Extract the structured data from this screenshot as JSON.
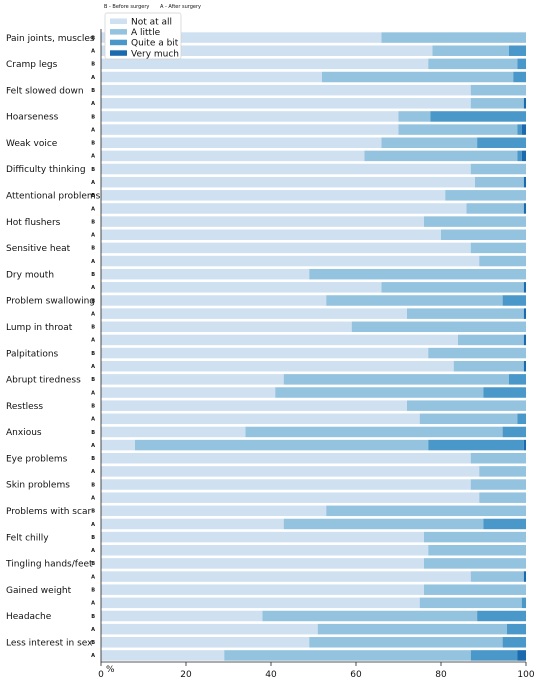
{
  "chart_data": {
    "type": "bar",
    "orientation": "horizontal",
    "stacked": true,
    "group_note": {
      "before": "B - Before surgery",
      "after": "A - After surgery"
    },
    "group_codes": [
      "B",
      "A"
    ],
    "categories": [
      "Pain joints, muscles",
      "Cramp legs",
      "Felt slowed down",
      "Hoarseness",
      "Weak voice",
      "Difficulty thinking",
      "Attentional problems",
      "Hot flushers",
      "Sensitive heat",
      "Dry mouth",
      "Problem swallowing",
      "Lump in throat",
      "Palpitations",
      "Abrupt tiredness",
      "Restless",
      "Anxious",
      "Eye problems",
      "Skin problems",
      "Problems with scar",
      "Felt chilly",
      "Tingling hands/feet",
      "Gained weight",
      "Headache",
      "Less interest in sex"
    ],
    "series": [
      {
        "name": "Not at all",
        "color": "#cfe0f1"
      },
      {
        "name": "A little",
        "color": "#93c3df"
      },
      {
        "name": "Quite a bit",
        "color": "#4a98c9"
      },
      {
        "name": "Very much",
        "color": "#1c6aae"
      }
    ],
    "values": [
      {
        "B": [
          66,
          34,
          0,
          0
        ],
        "A": [
          78,
          18,
          4,
          0
        ]
      },
      {
        "B": [
          77,
          21,
          2,
          0
        ],
        "A": [
          52,
          45,
          3,
          0
        ]
      },
      {
        "B": [
          87,
          13,
          0,
          0
        ],
        "A": [
          87,
          12.5,
          0,
          0.5
        ]
      },
      {
        "B": [
          70,
          7.5,
          22.5,
          0
        ],
        "A": [
          70,
          28,
          1,
          1
        ]
      },
      {
        "B": [
          66,
          22.5,
          11.5,
          0
        ],
        "A": [
          62,
          36,
          1,
          1
        ]
      },
      {
        "B": [
          87,
          13,
          0,
          0
        ],
        "A": [
          88,
          11.5,
          0,
          0.5
        ]
      },
      {
        "B": [
          81,
          19,
          0,
          0
        ],
        "A": [
          86,
          13.5,
          0,
          0.5
        ]
      },
      {
        "B": [
          76,
          24,
          0,
          0
        ],
        "A": [
          80,
          20,
          0,
          0
        ]
      },
      {
        "B": [
          87,
          13,
          0,
          0
        ],
        "A": [
          89,
          11,
          0,
          0
        ]
      },
      {
        "B": [
          49,
          51,
          0,
          0
        ],
        "A": [
          66,
          33.5,
          0,
          0.5
        ]
      },
      {
        "B": [
          53,
          41.5,
          5.5,
          0
        ],
        "A": [
          72,
          27.5,
          0,
          0.5
        ]
      },
      {
        "B": [
          59,
          41,
          0,
          0
        ],
        "A": [
          84,
          15.5,
          0,
          0.5
        ]
      },
      {
        "B": [
          77,
          23,
          0,
          0
        ],
        "A": [
          83,
          16.5,
          0,
          0.5
        ]
      },
      {
        "B": [
          43,
          53,
          4,
          0
        ],
        "A": [
          41,
          49,
          10,
          0
        ]
      },
      {
        "B": [
          72,
          28,
          0,
          0
        ],
        "A": [
          75,
          23,
          2,
          0
        ]
      },
      {
        "B": [
          34,
          60.5,
          5.5,
          0
        ],
        "A": [
          8,
          69,
          22.5,
          0.5
        ]
      },
      {
        "B": [
          87,
          13,
          0,
          0
        ],
        "A": [
          89,
          11,
          0,
          0
        ]
      },
      {
        "B": [
          87,
          13,
          0,
          0
        ],
        "A": [
          89,
          11,
          0,
          0
        ]
      },
      {
        "B": [
          53,
          47,
          0,
          0
        ],
        "A": [
          43,
          47,
          10,
          0
        ]
      },
      {
        "B": [
          76,
          24,
          0,
          0
        ],
        "A": [
          77,
          23,
          0,
          0
        ]
      },
      {
        "B": [
          76,
          24,
          0,
          0
        ],
        "A": [
          87,
          12.5,
          0,
          0.5
        ]
      },
      {
        "B": [
          76,
          24,
          0,
          0
        ],
        "A": [
          75,
          24,
          1,
          0
        ]
      },
      {
        "B": [
          38,
          50.5,
          11.5,
          0
        ],
        "A": [
          51,
          44.5,
          4.5,
          0
        ]
      },
      {
        "B": [
          49,
          45.5,
          5.5,
          0
        ],
        "A": [
          29,
          58,
          11,
          2
        ]
      }
    ],
    "xlim": [
      0,
      100
    ],
    "xticks": [
      0,
      20,
      40,
      60,
      80,
      100
    ],
    "x_unit_label": "%",
    "legend_position": "top-left",
    "grid": false
  }
}
